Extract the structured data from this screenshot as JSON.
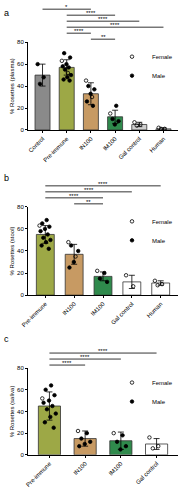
{
  "chart_data": [
    {
      "type": "bar",
      "title": "a",
      "ylabel": "% Rosettes (plasma)",
      "categories": [
        "Control",
        "Pre-immune",
        "IN100",
        "IM100",
        "Gal control",
        "Human"
      ],
      "values": [
        50,
        57,
        33,
        12,
        5,
        1
      ],
      "error": [
        10,
        7,
        10,
        6,
        2,
        1
      ],
      "colors": [
        "#8a8a8a",
        "#9da846",
        "#c79a63",
        "#2f8a4c",
        "#d0d0d0",
        "#e6e6e6"
      ],
      "ylim": [
        0,
        80
      ],
      "yticks": [
        0,
        20,
        40,
        60,
        80
      ],
      "grid": false,
      "legend": "upper right",
      "points": [
        {
          "name": "Female",
          "marker": "circle-open",
          "color": "#000000",
          "values": [
            [],
            [
              63,
              52
            ],
            [
              45,
              30
            ],
            [
              15
            ],
            [
              7,
              5,
              4
            ],
            [
              2,
              1,
              1
            ]
          ]
        },
        {
          "name": "Male",
          "marker": "circle",
          "color": "#000000",
          "values": [
            [
              60,
              48,
              42
            ],
            [
              70,
              66,
              60,
              58,
              57,
              55,
              50,
              48,
              46,
              45
            ],
            [
              40,
              37,
              33,
              26,
              22
            ],
            [
              22,
              10,
              8,
              5
            ],
            [],
            []
          ]
        }
      ],
      "annotations": [
        {
          "from": "Control",
          "to": "IN100",
          "text": "*"
        },
        {
          "from": "Pre-immune",
          "to": "IM100",
          "text": "****"
        },
        {
          "from": "Pre-immune",
          "to": "Gal control",
          "text": "****"
        },
        {
          "from": "Pre-immune",
          "to": "Human",
          "text": "****"
        },
        {
          "from": "Pre-immune",
          "to": "IN100",
          "text": "****"
        },
        {
          "from": "IN100",
          "to": "IM100",
          "text": "**"
        }
      ]
    },
    {
      "type": "bar",
      "title": "b",
      "ylabel": "% Rosettes (stool)",
      "categories": [
        "Pre-immune",
        "IN100",
        "IM100",
        "Gal control",
        "Human"
      ],
      "values": [
        55,
        37,
        17,
        12,
        11
      ],
      "error": [
        8,
        9,
        4,
        6,
        2
      ],
      "colors": [
        "#9da846",
        "#c79a63",
        "#2f8a4c",
        "#ffffff",
        "#ffffff"
      ],
      "ylim": [
        0,
        80
      ],
      "yticks": [
        0,
        20,
        40,
        60,
        80
      ],
      "grid": false,
      "legend": "upper right",
      "points": [
        {
          "name": "Female",
          "marker": "circle-open",
          "color": "#000000",
          "values": [
            [
              63
            ],
            [
              48,
              35
            ],
            [
              22
            ],
            [
              18,
              8
            ],
            [
              13,
              10,
              9
            ]
          ]
        },
        {
          "name": "Male",
          "marker": "circle",
          "color": "#000000",
          "values": [
            [
              68,
              65,
              62,
              60,
              58,
              55,
              52,
              50,
              48,
              45,
              42
            ],
            [
              45,
              40,
              30,
              25
            ],
            [
              20,
              15,
              12
            ],
            [],
            []
          ]
        }
      ],
      "annotations": [
        {
          "from": "Pre-immune",
          "to": "Human",
          "text": "****"
        },
        {
          "from": "Pre-immune",
          "to": "Gal control",
          "text": "****"
        },
        {
          "from": "Pre-immune",
          "to": "IM100",
          "text": "****"
        },
        {
          "from": "IN100",
          "to": "IM100",
          "text": "**"
        }
      ]
    },
    {
      "type": "bar",
      "title": "c",
      "ylabel": "% Rosettes (saliva)",
      "categories": [
        "Pre-immune",
        "IN100",
        "IM100",
        "Gal control"
      ],
      "values": [
        45,
        15,
        13,
        10
      ],
      "error": [
        13,
        7,
        8,
        5
      ],
      "colors": [
        "#9da846",
        "#c79a63",
        "#2f8a4c",
        "#ffffff"
      ],
      "ylim": [
        0,
        80
      ],
      "yticks": [
        0,
        20,
        40,
        60,
        80
      ],
      "grid": false,
      "legend": "upper right",
      "points": [
        {
          "name": "Female",
          "marker": "circle-open",
          "color": "#000000",
          "values": [
            [
              52
            ],
            [
              22
            ],
            [
              20
            ],
            [
              16,
              8,
              6
            ]
          ]
        },
        {
          "name": "Male",
          "marker": "circle",
          "color": "#000000",
          "values": [
            [
              64,
              60,
              55,
              50,
              48,
              45,
              42,
              38,
              35,
              30,
              25
            ],
            [
              20,
              15,
              12,
              10,
              8
            ],
            [
              18,
              12,
              8,
              5
            ],
            []
          ]
        }
      ],
      "annotations": [
        {
          "from": "Pre-immune",
          "to": "Gal control",
          "text": "****"
        },
        {
          "from": "Pre-immune",
          "to": "IM100",
          "text": "****"
        },
        {
          "from": "Pre-immune",
          "to": "IN100",
          "text": "****"
        }
      ]
    }
  ]
}
